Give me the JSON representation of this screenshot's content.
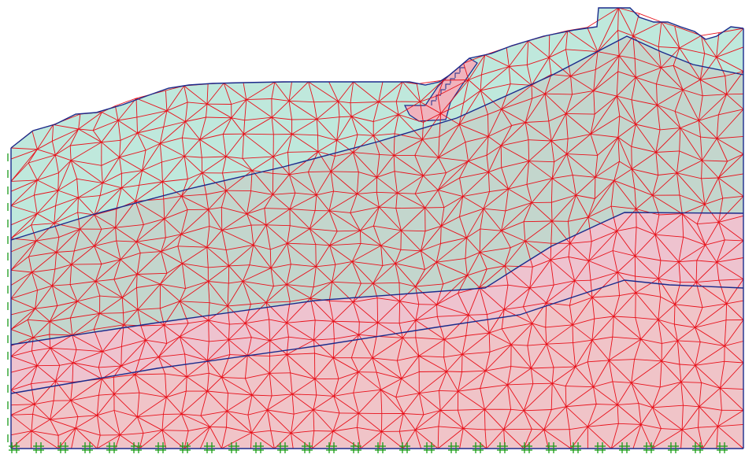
{
  "layers": [
    {
      "name": "",
      "color": "#bfe8dc"
    },
    {
      "name": "",
      "color": "#c3d6cd"
    },
    {
      "name": "",
      "color": "#eec3cf"
    },
    {
      "name": "",
      "color": "#f0c4c8"
    },
    {
      "name": "",
      "color": "#e9c4c4"
    }
  ],
  "colors": {
    "mesh_edges": "#e8101a",
    "layer_boundaries": "#1a2a8c",
    "fixities": "#1a9a1a",
    "structure": "#f0b3bd"
  },
  "icons": [
    "roller-fixity-icon",
    "pin-fixity-icon"
  ]
}
